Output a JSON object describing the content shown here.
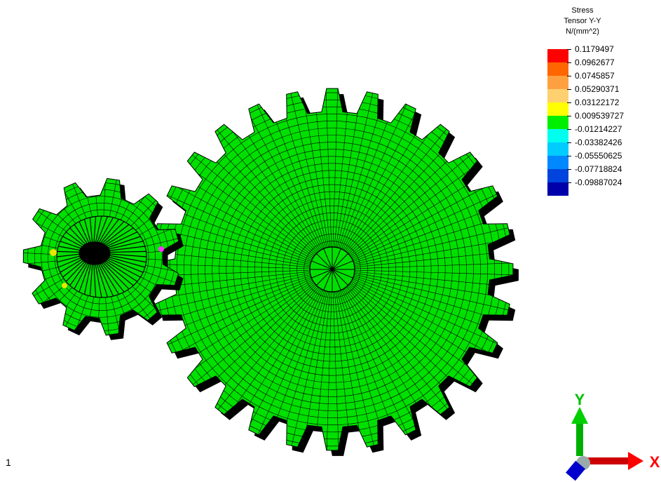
{
  "legend": {
    "title_lines": [
      "Stress",
      "Tensor Y-Y",
      "N/(mm^2)"
    ],
    "entries": [
      {
        "label": "0.1179497",
        "color": "#ff0000"
      },
      {
        "label": "0.0962677",
        "color": "#ff6600"
      },
      {
        "label": "0.0745857",
        "color": "#ffa040"
      },
      {
        "label": "0.05290371",
        "color": "#ffd070"
      },
      {
        "label": "0.03122172",
        "color": "#ffff00"
      },
      {
        "label": "0.009539727",
        "color": "#00ee00"
      },
      {
        "label": "-0.01214227",
        "color": "#00ffee"
      },
      {
        "label": "-0.03382426",
        "color": "#00ccff"
      },
      {
        "label": "-0.05550625",
        "color": "#0088ff"
      },
      {
        "label": "-0.07718824",
        "color": "#0044dd"
      },
      {
        "label": "-0.09887024",
        "color": "#0000aa"
      }
    ]
  },
  "frame_number": "1",
  "axes": {
    "y_label": "Y",
    "x_label": "X"
  },
  "colors": {
    "mesh_fill": "#00e000",
    "mesh_line": "#000000",
    "tooth_side": "#000000"
  }
}
